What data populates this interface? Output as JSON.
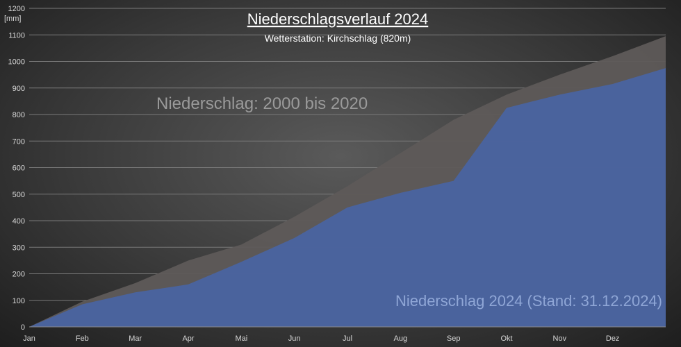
{
  "chart_data": {
    "type": "area",
    "title": "Niederschlagsverlauf 2024",
    "subtitle": "Wetterstation: Kirchschlag (820m)",
    "ylabel": "[mm]",
    "categories": [
      "Jan",
      "Feb",
      "Mar",
      "Apr",
      "Mai",
      "Jun",
      "Jul",
      "Aug",
      "Sep",
      "Okt",
      "Nov",
      "Dez"
    ],
    "x": [
      0,
      1,
      2,
      3,
      4,
      5,
      6,
      7,
      8,
      9,
      10,
      11,
      12
    ],
    "ylim": [
      0,
      1200
    ],
    "yticks": [
      0,
      100,
      200,
      300,
      400,
      500,
      600,
      700,
      800,
      900,
      1000,
      1100,
      1200
    ],
    "grid": true,
    "series": [
      {
        "name": "Niederschlag: 2000 bis 2020",
        "color": "#5e5a58",
        "values": [
          0,
          95,
          165,
          250,
          310,
          415,
          530,
          655,
          780,
          875,
          950,
          1020,
          1095
        ]
      },
      {
        "name": "Niederschlag 2024 (Stand: 31.12.2024)",
        "color": "#4a64a0",
        "values": [
          0,
          85,
          130,
          160,
          245,
          335,
          450,
          505,
          550,
          825,
          875,
          915,
          975
        ]
      }
    ]
  }
}
